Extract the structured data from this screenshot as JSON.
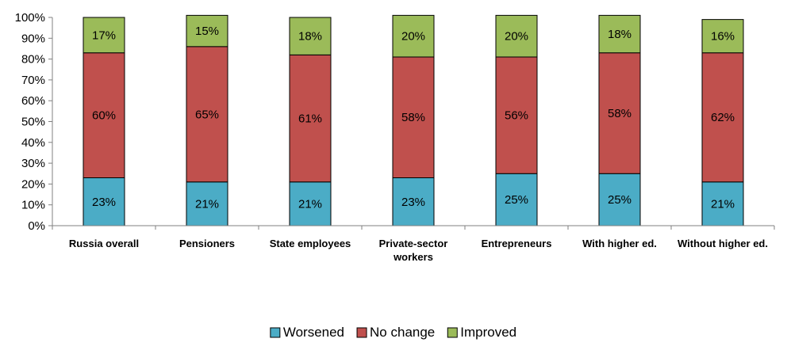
{
  "chart_data": {
    "type": "bar",
    "stacked": true,
    "orientation": "vertical",
    "categories": [
      "Russia overall",
      "Pensioners",
      "State employees",
      [
        "Private-sector",
        "workers"
      ],
      "Entrepreneurs",
      "With higher ed.",
      "Without higher ed."
    ],
    "series": [
      {
        "name": "Worsened",
        "color": "#4BACC6",
        "values": [
          23,
          21,
          21,
          23,
          25,
          25,
          21
        ]
      },
      {
        "name": "No change",
        "color": "#C0504D",
        "values": [
          60,
          65,
          61,
          58,
          56,
          58,
          62
        ]
      },
      {
        "name": "Improved",
        "color": "#9BBB59",
        "values": [
          17,
          15,
          18,
          20,
          20,
          18,
          16
        ]
      }
    ],
    "ylim": [
      0,
      100
    ],
    "yticks": [
      "0%",
      "10%",
      "20%",
      "30%",
      "40%",
      "50%",
      "60%",
      "70%",
      "80%",
      "90%",
      "100%"
    ],
    "value_suffix": "%",
    "grid": false,
    "legend": "bottom-center"
  }
}
